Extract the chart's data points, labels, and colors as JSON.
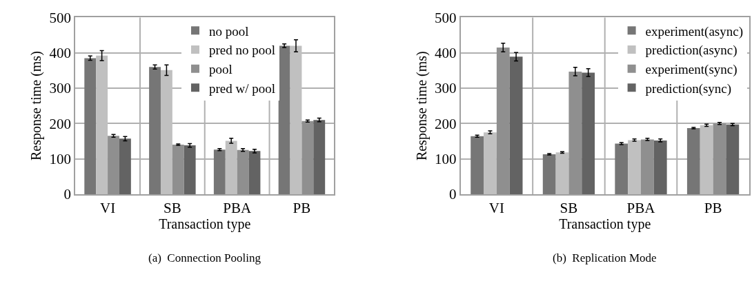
{
  "chart_data": [
    {
      "type": "bar",
      "title": "(a)  Connection Pooling",
      "xlabel": "Transaction type",
      "ylabel": "Response time (ms)",
      "categories": [
        "VI",
        "SB",
        "PBA",
        "PB"
      ],
      "ylim": [
        0,
        500
      ],
      "yticks": [
        0,
        100,
        200,
        300,
        400,
        500
      ],
      "grid": true,
      "legend": "top",
      "series": [
        {
          "name": "no pool",
          "color": "#767676",
          "values": [
            385,
            360,
            126,
            420
          ],
          "errors": [
            6,
            6,
            3,
            5
          ]
        },
        {
          "name": "pred no pool",
          "color": "#c0c0c0",
          "values": [
            392,
            351,
            151,
            420
          ],
          "errors": [
            14,
            15,
            7,
            17
          ]
        },
        {
          "name": "pool",
          "color": "#8f8f8f",
          "values": [
            165,
            140,
            125,
            207
          ],
          "errors": [
            4,
            2,
            4,
            3
          ]
        },
        {
          "name": "pred w/ pool",
          "color": "#636363",
          "values": [
            157,
            138,
            122,
            210
          ],
          "errors": [
            6,
            5,
            5,
            5
          ]
        }
      ]
    },
    {
      "type": "bar",
      "title": "(b)  Replication Mode",
      "xlabel": "Transaction type",
      "ylabel": "Response time (ms)",
      "categories": [
        "VI",
        "SB",
        "PBA",
        "PB"
      ],
      "ylim": [
        0,
        500
      ],
      "yticks": [
        0,
        100,
        200,
        300,
        400,
        500
      ],
      "grid": true,
      "legend": "top right",
      "series": [
        {
          "name": "experiment(async)",
          "color": "#767676",
          "values": [
            164,
            113,
            143,
            187
          ],
          "errors": [
            3,
            2,
            3,
            2
          ]
        },
        {
          "name": "prediction(async)",
          "color": "#c0c0c0",
          "values": [
            175,
            118,
            153,
            195
          ],
          "errors": [
            4,
            2,
            3,
            3
          ]
        },
        {
          "name": "experiment(sync)",
          "color": "#8f8f8f",
          "values": [
            415,
            347,
            155,
            200
          ],
          "errors": [
            12,
            12,
            3,
            3
          ]
        },
        {
          "name": "prediction(sync)",
          "color": "#636363",
          "values": [
            389,
            344,
            152,
            197
          ],
          "errors": [
            12,
            11,
            4,
            3
          ]
        }
      ]
    }
  ]
}
